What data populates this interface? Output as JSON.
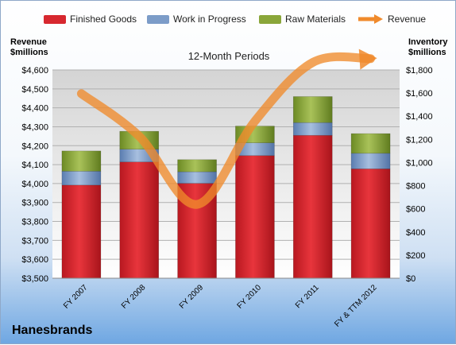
{
  "chart_data": {
    "type": "bar",
    "title": "12-Month Periods",
    "company": "Hanesbrands",
    "left_axis_label": [
      "Revenue",
      "$millions"
    ],
    "right_axis_label": [
      "Inventory",
      "$millions"
    ],
    "categories": [
      "FY 2007",
      "FY 2008",
      "FY 2009",
      "FY 2010",
      "FY 2011",
      "FY & TTM 2012"
    ],
    "left_ticks": [
      "$3,500",
      "$3,600",
      "$3,700",
      "$3,800",
      "$3,900",
      "$4,000",
      "$4,100",
      "$4,200",
      "$4,300",
      "$4,400",
      "$4,500",
      "$4,600"
    ],
    "right_ticks": [
      "$0",
      "$200",
      "$400",
      "$600",
      "$800",
      "$1,000",
      "$1,200",
      "$1,400",
      "$1,600",
      "$1,800"
    ],
    "ylim_left": [
      3500,
      4600
    ],
    "ylim_right": [
      0,
      1800
    ],
    "series": [
      {
        "name": "Finished Goods",
        "axis": "right",
        "color": "#d7282f",
        "values": [
          805,
          1005,
          820,
          1060,
          1235,
          945
        ]
      },
      {
        "name": "Work in Progress",
        "axis": "right",
        "color": "#7c9cc8",
        "values": [
          120,
          110,
          100,
          110,
          110,
          135
        ]
      },
      {
        "name": "Raw Materials",
        "axis": "right",
        "color": "#8aa63a",
        "values": [
          175,
          155,
          105,
          145,
          225,
          170
        ]
      },
      {
        "name": "Revenue",
        "axis": "left",
        "type": "line",
        "color": "#f08a2c",
        "values": [
          4475,
          4250,
          3890,
          4330,
          4640,
          4660
        ]
      }
    ]
  }
}
